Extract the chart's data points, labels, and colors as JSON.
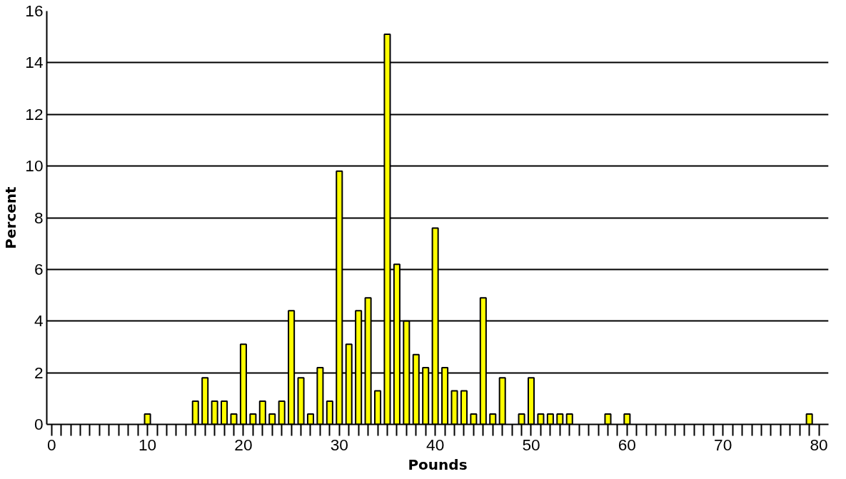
{
  "chart_data": {
    "type": "bar",
    "xlabel": "Pounds",
    "ylabel": "Percent",
    "color": "#ffff00",
    "x": [
      10,
      15,
      16,
      17,
      18,
      19,
      20,
      21,
      22,
      23,
      24,
      25,
      26,
      27,
      28,
      29,
      30,
      31,
      32,
      33,
      34,
      35,
      36,
      37,
      38,
      39,
      40,
      41,
      42,
      43,
      44,
      45,
      46,
      47,
      49,
      50,
      51,
      52,
      53,
      54,
      58,
      60,
      79
    ],
    "values": [
      0.4,
      0.9,
      1.8,
      0.9,
      0.9,
      0.4,
      3.1,
      0.4,
      0.9,
      0.4,
      0.9,
      4.4,
      1.8,
      0.4,
      2.2,
      0.9,
      9.8,
      3.1,
      4.4,
      4.9,
      1.3,
      15.1,
      6.2,
      4.0,
      2.7,
      2.2,
      7.6,
      2.2,
      1.3,
      1.3,
      0.4,
      4.9,
      0.4,
      1.8,
      0.4,
      1.8,
      0.4,
      0.4,
      0.4,
      0.4,
      0.4,
      0.4,
      0.4
    ],
    "xlim": [
      -0.5,
      81
    ],
    "ylim": [
      0,
      16
    ],
    "xticks": [
      0,
      {
        "value": 1,
        "label": null
      },
      {
        "value": 2,
        "label": null
      },
      {
        "value": 3,
        "label": null
      },
      {
        "value": 4,
        "label": null
      },
      {
        "value": 5,
        "label": null
      },
      {
        "value": 6,
        "label": null
      },
      {
        "value": 7,
        "label": null
      },
      {
        "value": 8,
        "label": null
      },
      {
        "value": 9,
        "label": null
      },
      10,
      {
        "value": 11,
        "label": null
      },
      {
        "value": 12,
        "label": null
      },
      {
        "value": 13,
        "label": null
      },
      {
        "value": 14,
        "label": null
      },
      {
        "value": 15,
        "label": null
      },
      {
        "value": 16,
        "label": null
      },
      {
        "value": 17,
        "label": null
      },
      {
        "value": 18,
        "label": null
      },
      {
        "value": 19,
        "label": null
      },
      20,
      {
        "value": 21,
        "label": null
      },
      {
        "value": 22,
        "label": null
      },
      {
        "value": 23,
        "label": null
      },
      {
        "value": 24,
        "label": null
      },
      {
        "value": 25,
        "label": null
      },
      {
        "value": 26,
        "label": null
      },
      {
        "value": 27,
        "label": null
      },
      {
        "value": 28,
        "label": null
      },
      {
        "value": 29,
        "label": null
      },
      30,
      {
        "value": 31,
        "label": null
      },
      {
        "value": 32,
        "label": null
      },
      {
        "value": 33,
        "label": null
      },
      {
        "value": 34,
        "label": null
      },
      {
        "value": 35,
        "label": null
      },
      {
        "value": 36,
        "label": null
      },
      {
        "value": 37,
        "label": null
      },
      {
        "value": 38,
        "label": null
      },
      {
        "value": 39,
        "label": null
      },
      40,
      {
        "value": 41,
        "label": null
      },
      {
        "value": 42,
        "label": null
      },
      {
        "value": 43,
        "label": null
      },
      {
        "value": 44,
        "label": null
      },
      {
        "value": 45,
        "label": null
      },
      {
        "value": 46,
        "label": null
      },
      {
        "value": 47,
        "label": null
      },
      {
        "value": 48,
        "label": null
      },
      {
        "value": 49,
        "label": null
      },
      50,
      {
        "value": 51,
        "label": null
      },
      {
        "value": 52,
        "label": null
      },
      {
        "value": 53,
        "label": null
      },
      {
        "value": 54,
        "label": null
      },
      {
        "value": 55,
        "label": null
      },
      {
        "value": 56,
        "label": null
      },
      {
        "value": 57,
        "label": null
      },
      {
        "value": 58,
        "label": null
      },
      {
        "value": 59,
        "label": null
      },
      60,
      {
        "value": 61,
        "label": null
      },
      {
        "value": 62,
        "label": null
      },
      {
        "value": 63,
        "label": null
      },
      {
        "value": 64,
        "label": null
      },
      {
        "value": 65,
        "label": null
      },
      {
        "value": 66,
        "label": null
      },
      {
        "value": 67,
        "label": null
      },
      {
        "value": 68,
        "label": null
      },
      {
        "value": 69,
        "label": null
      },
      70,
      {
        "value": 71,
        "label": null
      },
      {
        "value": 72,
        "label": null
      },
      {
        "value": 73,
        "label": null
      },
      {
        "value": 74,
        "label": null
      },
      {
        "value": 75,
        "label": null
      },
      {
        "value": 76,
        "label": null
      },
      {
        "value": 77,
        "label": null
      },
      {
        "value": 78,
        "label": null
      },
      {
        "value": 79,
        "label": null
      },
      80
    ],
    "yticks": [
      0,
      2,
      4,
      6,
      8,
      10,
      12,
      14,
      16
    ],
    "grid": "y"
  }
}
